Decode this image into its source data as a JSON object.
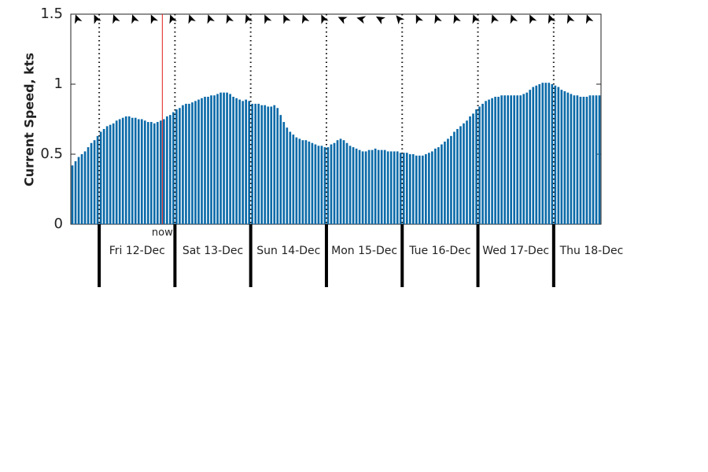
{
  "chart_data": {
    "type": "bar",
    "y_label": "Current Speed, kts",
    "color": "#0b6aa8",
    "ylim": [
      0,
      1.5
    ],
    "yticks": [
      0,
      0.5,
      1,
      1.5
    ],
    "xlim": [
      0,
      168
    ],
    "xticks": [
      {
        "value": 9,
        "label": "Fri 12-Dec"
      },
      {
        "value": 33,
        "label": "Sat 13-Dec"
      },
      {
        "value": 57,
        "label": "Sun 14-Dec"
      },
      {
        "value": 81,
        "label": "Mon 15-Dec"
      },
      {
        "value": 105,
        "label": "Tue 16-Dec"
      },
      {
        "value": 129,
        "label": "Wed 17-Dec"
      },
      {
        "value": 153,
        "label": "Thu 18-Dec"
      }
    ],
    "now": {
      "label": "now",
      "x": 29,
      "color": "#e0201b"
    },
    "values": [
      0.42,
      0.45,
      0.48,
      0.5,
      0.52,
      0.55,
      0.58,
      0.6,
      0.63,
      0.66,
      0.68,
      0.7,
      0.71,
      0.72,
      0.74,
      0.75,
      0.76,
      0.77,
      0.77,
      0.76,
      0.76,
      0.75,
      0.75,
      0.74,
      0.73,
      0.73,
      0.72,
      0.73,
      0.74,
      0.75,
      0.77,
      0.78,
      0.8,
      0.82,
      0.83,
      0.85,
      0.86,
      0.86,
      0.87,
      0.88,
      0.89,
      0.9,
      0.91,
      0.91,
      0.92,
      0.92,
      0.93,
      0.94,
      0.94,
      0.94,
      0.93,
      0.91,
      0.9,
      0.89,
      0.88,
      0.89,
      0.88,
      0.86,
      0.86,
      0.86,
      0.85,
      0.85,
      0.84,
      0.84,
      0.85,
      0.83,
      0.78,
      0.73,
      0.69,
      0.66,
      0.64,
      0.62,
      0.61,
      0.6,
      0.6,
      0.59,
      0.58,
      0.57,
      0.56,
      0.56,
      0.55,
      0.55,
      0.57,
      0.58,
      0.6,
      0.61,
      0.6,
      0.58,
      0.56,
      0.55,
      0.54,
      0.53,
      0.52,
      0.52,
      0.53,
      0.53,
      0.54,
      0.53,
      0.53,
      0.53,
      0.52,
      0.52,
      0.52,
      0.52,
      0.51,
      0.51,
      0.51,
      0.5,
      0.5,
      0.49,
      0.49,
      0.49,
      0.5,
      0.51,
      0.52,
      0.54,
      0.55,
      0.57,
      0.59,
      0.61,
      0.63,
      0.66,
      0.68,
      0.7,
      0.72,
      0.74,
      0.77,
      0.79,
      0.82,
      0.84,
      0.86,
      0.88,
      0.89,
      0.9,
      0.91,
      0.91,
      0.92,
      0.92,
      0.92,
      0.92,
      0.92,
      0.92,
      0.92,
      0.93,
      0.94,
      0.96,
      0.98,
      0.99,
      1.0,
      1.01,
      1.01,
      1.01,
      1.0,
      0.99,
      0.98,
      0.96,
      0.95,
      0.94,
      0.93,
      0.92,
      0.92,
      0.91,
      0.91,
      0.91,
      0.92,
      0.92,
      0.92,
      0.92
    ],
    "directions": {
      "x": [
        2,
        8,
        14,
        20,
        26,
        32,
        38,
        44,
        50,
        56,
        62,
        68,
        74,
        80,
        86,
        92,
        98,
        104,
        110,
        116,
        122,
        128,
        134,
        140,
        146,
        152,
        158,
        164
      ],
      "deg": [
        340,
        335,
        340,
        340,
        335,
        340,
        340,
        340,
        340,
        340,
        335,
        335,
        340,
        335,
        295,
        285,
        300,
        320,
        335,
        340,
        340,
        340,
        340,
        340,
        335,
        340,
        340,
        340
      ]
    }
  }
}
